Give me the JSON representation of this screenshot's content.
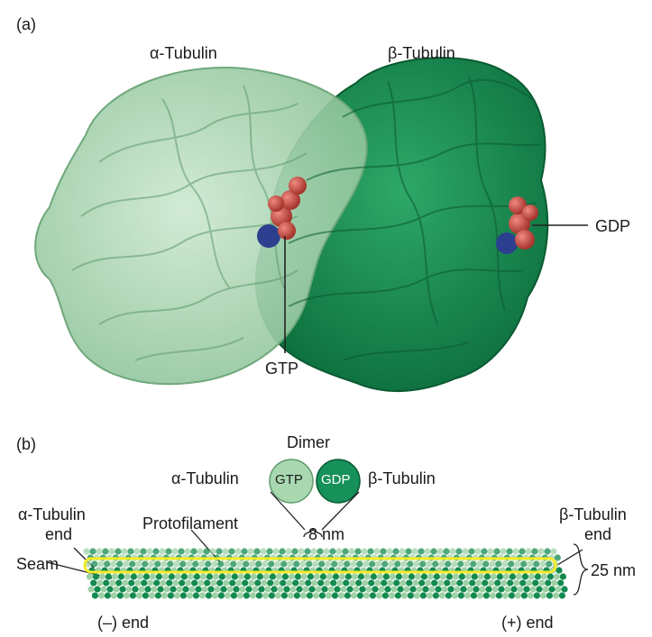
{
  "panel_a": {
    "tag": "(a)",
    "alpha_label": "α-Tubulin",
    "beta_label": "β-Tubulin",
    "gtp_label": "GTP",
    "gdp_label": "GDP"
  },
  "panel_b": {
    "tag": "(b)",
    "dimer_title": "Dimer",
    "dimer_left_label": "α-Tubulin",
    "dimer_right_label": "β-Tubulin",
    "gtp_in_circle": "GTP",
    "gdp_in_circle": "GDP",
    "alpha_end_line1": "α-Tubulin",
    "alpha_end_line2": "end",
    "beta_end_line1": "β-Tubulin",
    "beta_end_line2": "end",
    "protofilament_label": "Protofilament",
    "seam_label": "Seam",
    "spacing_label": "8 nm",
    "diameter_label": "25 nm",
    "minus_end": "(–) end",
    "plus_end": "(+) end"
  },
  "colors": {
    "alpha_green": "#9fd1a6",
    "beta_green": "#138a4f",
    "gtp_red": "#c8493f",
    "highlight_yellow": "#f4ec2a"
  }
}
